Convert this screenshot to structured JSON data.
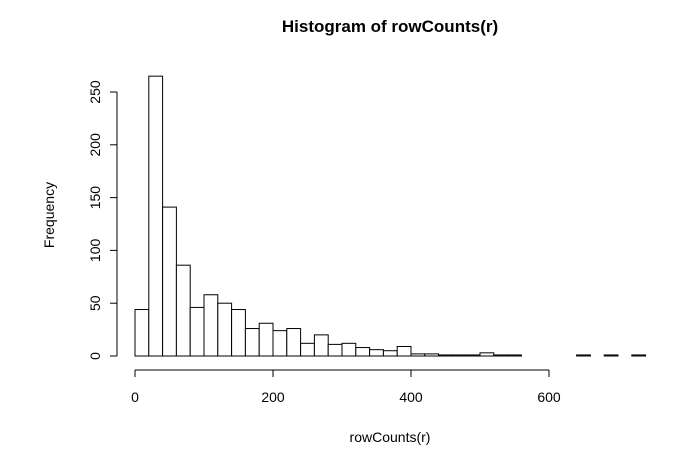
{
  "chart_data": {
    "type": "bar",
    "title": "Histogram of rowCounts(r)",
    "xlabel": "rowCounts(r)",
    "ylabel": "Frequency",
    "xlim": [
      0,
      740
    ],
    "ylim": [
      0,
      270
    ],
    "bin_width": 20,
    "bin_start": 0,
    "values": [
      44,
      265,
      141,
      86,
      46,
      58,
      50,
      44,
      26,
      31,
      24,
      26,
      12,
      20,
      11,
      12,
      8,
      6,
      5,
      9,
      2,
      2,
      1,
      1,
      1,
      3,
      1,
      1,
      0,
      0,
      0,
      0,
      1,
      0,
      1,
      0,
      1
    ],
    "x_ticks": [
      0,
      200,
      400,
      600
    ],
    "y_ticks": [
      0,
      50,
      100,
      150,
      200,
      250
    ],
    "grid": false,
    "legend": false
  }
}
